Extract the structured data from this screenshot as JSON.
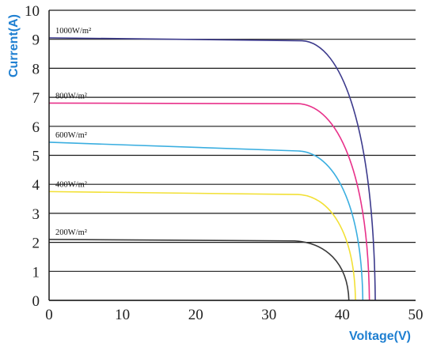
{
  "chart_data": {
    "type": "line",
    "xlabel": "Voltage(V)",
    "ylabel": "Current(A)",
    "xlim": [
      0,
      50
    ],
    "ylim": [
      0,
      10
    ],
    "x_ticks": [
      "0",
      "10",
      "20",
      "30",
      "40",
      "50"
    ],
    "y_ticks": [
      "0",
      "1",
      "2",
      "3",
      "4",
      "5",
      "6",
      "7",
      "8",
      "9",
      "10"
    ],
    "grid": "horizontal",
    "axis_title_color": "#1e7fd1",
    "series": [
      {
        "name": "1000W/m²",
        "color": "#3c3a8c",
        "isc": 9.05,
        "knee_current": 8.95,
        "knee_voltage": 34.5,
        "voc": 44.5
      },
      {
        "name": "800W/m²",
        "color": "#e8318a",
        "isc": 6.8,
        "knee_current": 6.78,
        "knee_voltage": 34.0,
        "voc": 43.7
      },
      {
        "name": "600W/m²",
        "color": "#3aaee0",
        "isc": 5.45,
        "knee_current": 5.15,
        "knee_voltage": 34.0,
        "voc": 42.8
      },
      {
        "name": "400W/m²",
        "color": "#f2e035",
        "isc": 3.75,
        "knee_current": 3.65,
        "knee_voltage": 34.0,
        "voc": 41.8
      },
      {
        "name": "200W/m²",
        "color": "#3a3a3a",
        "isc": 2.1,
        "knee_current": 2.05,
        "knee_voltage": 33.5,
        "voc": 40.9
      }
    ]
  }
}
